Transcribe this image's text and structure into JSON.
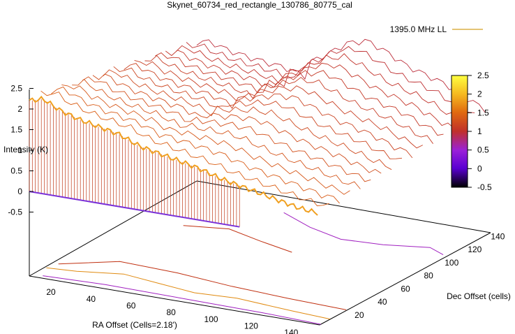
{
  "chart_data": {
    "type": "surface3d",
    "title": "Skynet_60734_red_rectangle_130786_80775_cal",
    "xlabel": "RA Offset (Cells=2.18')",
    "ylabel": "Dec Offset (cells)",
    "zlabel": "Intensity (K)",
    "legend": {
      "entries": [
        "1395.0 MHz LL"
      ],
      "position": "top-right",
      "line_color": "#d4a020"
    },
    "x_ticks": [
      "20",
      "40",
      "60",
      "80",
      "100",
      "120",
      "140"
    ],
    "y_ticks": [
      "20",
      "40",
      "60",
      "80",
      "100",
      "120",
      "140"
    ],
    "z_ticks": [
      "2.5",
      "2",
      "1.5",
      "1",
      "0.5",
      "0",
      "-0.5"
    ],
    "xlim": [
      5,
      150
    ],
    "ylim": [
      5,
      150
    ],
    "zlim": [
      -0.5,
      2.5
    ],
    "colorbar": {
      "range": [
        -0.5,
        2.5
      ],
      "ticks": [
        "2.5",
        "2",
        "1.5",
        "1",
        "0.5",
        "0",
        "-0.5"
      ],
      "colors": [
        "#000000",
        "#5a00d2",
        "#9a20d8",
        "#c0302a",
        "#e06a10",
        "#f5b820",
        "#ffff40"
      ]
    },
    "surface_ridge": {
      "x": [
        5,
        12,
        20,
        30,
        40,
        50,
        60,
        70,
        80,
        90,
        100,
        110,
        120,
        130,
        140,
        150
      ],
      "z": [
        2.2,
        2.3,
        2.1,
        1.95,
        1.85,
        1.75,
        1.55,
        1.45,
        1.35,
        1.25,
        1.1,
        1.0,
        0.9,
        0.8,
        0.7,
        0.65
      ]
    },
    "surface_far": {
      "x": [
        60,
        70,
        80,
        90,
        100,
        110,
        120,
        130,
        140,
        150
      ],
      "z": [
        1.25,
        1.55,
        1.9,
        2.05,
        1.85,
        1.6,
        1.45,
        1.3,
        1.05,
        0.85
      ]
    },
    "contour_colors": [
      "#a020c0",
      "#c03010",
      "#e08a10",
      "#e0a000"
    ]
  }
}
